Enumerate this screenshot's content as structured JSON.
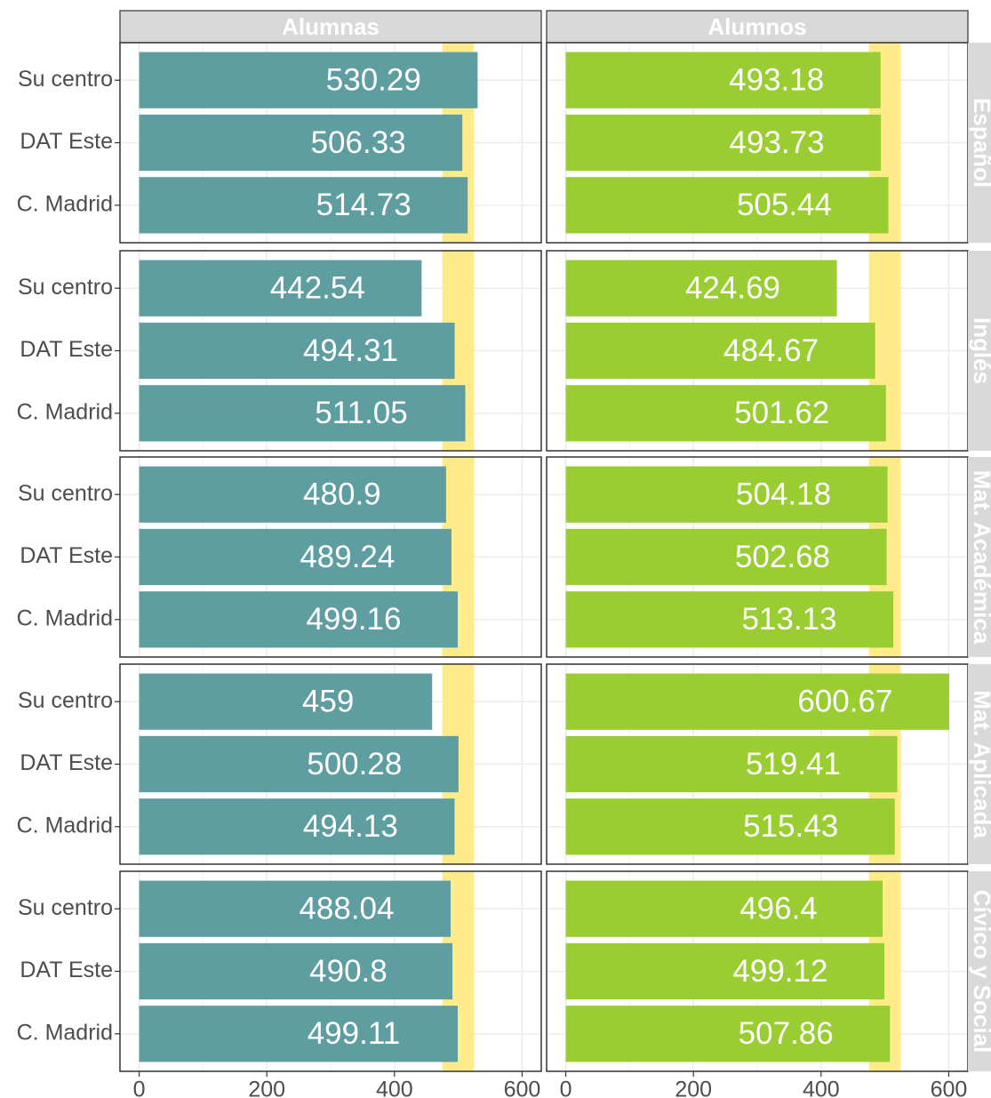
{
  "chart_data": {
    "type": "bar",
    "orientation": "horizontal",
    "rows": [
      "Español",
      "Inglés",
      "Mat. Académica",
      "Mat. Aplicada",
      "Cívico y Social"
    ],
    "categories": [
      "Su centro",
      "DAT Este",
      "C. Madrid"
    ],
    "series": [
      {
        "name": "Alumnas",
        "color": "#5f9ea0",
        "values": [
          [
            530.29,
            506.33,
            514.73
          ],
          [
            442.54,
            494.31,
            511.05
          ],
          [
            480.9,
            489.24,
            499.16
          ],
          [
            459,
            500.28,
            494.13
          ],
          [
            488.04,
            490.8,
            499.11
          ]
        ]
      },
      {
        "name": "Alumnos",
        "color": "#9acd32",
        "values": [
          [
            493.18,
            493.73,
            505.44
          ],
          [
            424.69,
            484.67,
            501.62
          ],
          [
            504.18,
            502.68,
            513.13
          ],
          [
            600.67,
            519.41,
            515.43
          ],
          [
            496.4,
            499.12,
            507.86
          ]
        ]
      }
    ],
    "band": [
      475,
      525
    ],
    "band_color": "#ffeb8a",
    "xlim": [
      -30,
      630
    ],
    "xticks": [
      0,
      200,
      400,
      600
    ],
    "xminor": [
      100,
      300,
      500
    ],
    "grid": true
  }
}
